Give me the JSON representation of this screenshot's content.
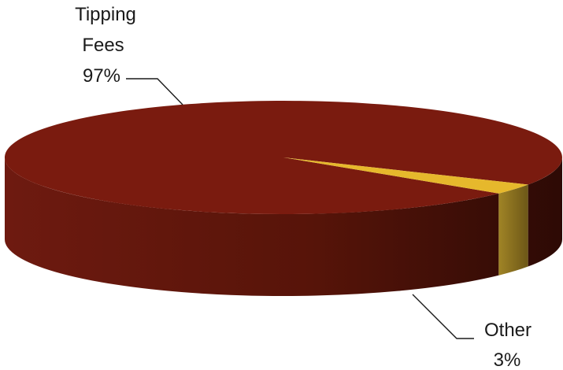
{
  "chart_data": {
    "type": "pie",
    "style": "3d",
    "title": "",
    "slices": [
      {
        "label": "Tipping Fees",
        "pct_label": "97%",
        "value": 97,
        "color": "#7a1b0f"
      },
      {
        "label": "Other",
        "pct_label": "3%",
        "value": 3,
        "color": "#e6b82c"
      }
    ],
    "legend": "none",
    "data_labels": "outside-with-leader-lines"
  }
}
